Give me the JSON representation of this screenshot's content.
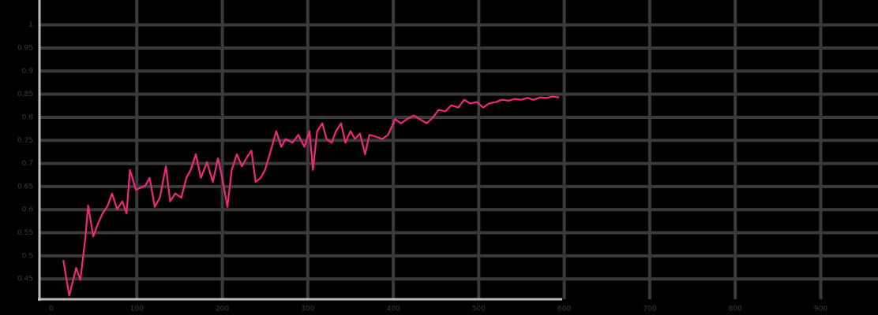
{
  "chart_data": {
    "type": "line",
    "color": "#f0287a",
    "grid": true,
    "xlim": [
      0,
      967
    ],
    "xticks": [
      0,
      100,
      200,
      300,
      400,
      500,
      600,
      700,
      800,
      900
    ],
    "ylim": [
      0.406,
      1.054
    ],
    "yticks": [
      0.45,
      0.5,
      0.55,
      0.6,
      0.65,
      0.7,
      0.75,
      0.8,
      0.85,
      0.9,
      0.95,
      1
    ],
    "x": [
      14,
      21,
      29,
      34,
      40,
      43,
      49,
      54,
      60,
      66,
      71,
      77,
      83,
      88,
      92,
      99,
      104,
      110,
      115,
      121,
      127,
      134,
      139,
      145,
      152,
      158,
      163,
      169,
      175,
      182,
      189,
      195,
      200,
      206,
      211,
      217,
      223,
      228,
      234,
      239,
      245,
      250,
      258,
      263,
      269,
      274,
      282,
      289,
      296,
      302,
      306,
      311,
      317,
      322,
      328,
      333,
      339,
      344,
      350,
      355,
      361,
      367,
      372,
      380,
      387,
      394,
      402,
      409,
      416,
      424,
      431,
      439,
      446,
      453,
      461,
      468,
      476,
      483,
      490,
      498,
      505,
      512,
      520,
      527,
      535,
      542,
      549,
      557,
      564,
      572,
      579,
      586,
      594
    ],
    "values": [
      0.491,
      0.414,
      0.474,
      0.448,
      0.542,
      0.609,
      0.542,
      0.567,
      0.592,
      0.609,
      0.635,
      0.601,
      0.618,
      0.592,
      0.686,
      0.643,
      0.647,
      0.652,
      0.669,
      0.606,
      0.626,
      0.694,
      0.618,
      0.635,
      0.626,
      0.669,
      0.686,
      0.72,
      0.669,
      0.703,
      0.66,
      0.711,
      0.669,
      0.606,
      0.686,
      0.72,
      0.694,
      0.711,
      0.728,
      0.66,
      0.669,
      0.686,
      0.736,
      0.77,
      0.736,
      0.753,
      0.745,
      0.762,
      0.736,
      0.77,
      0.686,
      0.77,
      0.787,
      0.753,
      0.745,
      0.77,
      0.787,
      0.745,
      0.77,
      0.753,
      0.765,
      0.72,
      0.762,
      0.758,
      0.753,
      0.762,
      0.796,
      0.787,
      0.796,
      0.804,
      0.796,
      0.787,
      0.799,
      0.816,
      0.813,
      0.826,
      0.821,
      0.838,
      0.83,
      0.833,
      0.821,
      0.83,
      0.833,
      0.838,
      0.836,
      0.84,
      0.838,
      0.842,
      0.838,
      0.843,
      0.842,
      0.845,
      0.843
    ]
  }
}
